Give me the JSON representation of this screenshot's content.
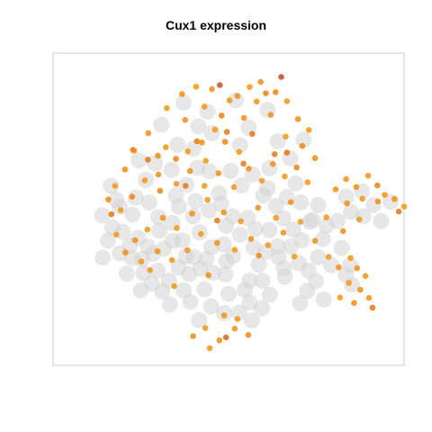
{
  "chart_data": {
    "type": "scatter",
    "title": "Cux1 expression",
    "xlabel": "",
    "ylabel": "",
    "legend": "none",
    "grid": false,
    "axes_visible": false,
    "xlim": [
      -40,
      40
    ],
    "ylim": [
      -40,
      40
    ],
    "colors": {
      "background_cells": "#d3d3d3",
      "low": "#f5b62c",
      "mid": "#ee8a1a",
      "high": "#c4473d",
      "panel_border": "#cccccc"
    },
    "series": [
      {
        "role": "non-expressing cells",
        "points": [
          [
            -26.5,
            -4.6
          ],
          [
            -24.8,
            0.6
          ],
          [
            -24.1,
            -5.8
          ],
          [
            -21.9,
            -1.4
          ],
          [
            -22.5,
            -9.3
          ],
          [
            -20.6,
            -7.3
          ],
          [
            -18.4,
            -9.6
          ],
          [
            -17.2,
            -11.4
          ],
          [
            -19.7,
            -12.8
          ],
          [
            -13.6,
            -18.3
          ],
          [
            -16.2,
            -15.7
          ],
          [
            -11.4,
            -14.9
          ],
          [
            -9.0,
            -16.6
          ],
          [
            -14.8,
            -10.1
          ],
          [
            -15.8,
            -5.5
          ],
          [
            -12.8,
            -3.5
          ],
          [
            -10.5,
            -8.0
          ],
          [
            -7.9,
            -12.2
          ],
          [
            -5.0,
            -12.7
          ],
          [
            -3.5,
            -16.3
          ],
          [
            -0.7,
            -16.7
          ],
          [
            -6.6,
            -5.9
          ],
          [
            -11.3,
            0.7
          ],
          [
            -12.0,
            3.5
          ],
          [
            -9.6,
            6.3
          ],
          [
            -7.5,
            2.1
          ],
          [
            -4.5,
            -0.3
          ],
          [
            -1.7,
            1.4
          ],
          [
            -0.6,
            -4.2
          ],
          [
            2.6,
            -6.5
          ],
          [
            4.4,
            -2.2
          ],
          [
            5.7,
            -9.8
          ],
          [
            9.3,
            -5.3
          ],
          [
            11.2,
            -9.5
          ],
          [
            12.4,
            -2.3
          ],
          [
            14.7,
            -5.2
          ],
          [
            16.7,
            -7.9
          ],
          [
            18.5,
            -3.2
          ],
          [
            10.8,
            0.8
          ],
          [
            7.9,
            3.5
          ],
          [
            13.3,
            3.1
          ],
          [
            16.5,
            1.7
          ],
          [
            19.1,
            -2.8
          ],
          [
            21.5,
            -7.6
          ],
          [
            20.4,
            -12.3
          ],
          [
            6.9,
            -14.2
          ],
          [
            12.6,
            -15.1
          ],
          [
            16.0,
            -13.8
          ],
          [
            -2.2,
            4.1
          ],
          [
            -4.4,
            9.7
          ],
          [
            0.5,
            9.8
          ],
          [
            3.0,
            6.1
          ],
          [
            5.5,
            8.9
          ],
          [
            9.3,
            10.5
          ],
          [
            -7.1,
            10.6
          ],
          [
            -13.0,
            10.1
          ],
          [
            -16.8,
            11.8
          ],
          [
            -18.9,
            7.5
          ],
          [
            -21.2,
            3.0
          ],
          [
            -25.6,
            2.4
          ],
          [
            -1.1,
            -9.0
          ],
          [
            1.0,
            -12.0
          ],
          [
            -18.1,
            1.7
          ],
          [
            -22.0,
            -12.5
          ],
          [
            2.6,
            16.4
          ],
          [
            4.6,
            20.9
          ],
          [
            -3.8,
            19.5
          ],
          [
            -8.0,
            15.5
          ],
          [
            11.2,
            17.4
          ],
          [
            14.0,
            13.1
          ],
          [
            17.1,
            17.8
          ],
          [
            8.9,
            25.4
          ],
          [
            1.6,
            27.9
          ],
          [
            -4.8,
            25.0
          ],
          [
            12.8,
            -17.3
          ],
          [
            4.8,
            -18.3
          ],
          [
            -4.0,
            -24.9
          ],
          [
            -1.0,
            -26.6
          ],
          [
            2.4,
            -26.5
          ],
          [
            4.8,
            -23.9
          ],
          [
            7.6,
            -25.4
          ],
          [
            9.4,
            -21.9
          ],
          [
            19.9,
            -18.4
          ],
          [
            17.9,
            -20.9
          ],
          [
            16.3,
            -24.1
          ],
          [
            26.7,
            -16.8
          ],
          [
            28.1,
            -19.4
          ],
          [
            27.7,
            -14.3
          ],
          [
            25.8,
            -9.9
          ],
          [
            23.4,
            -14.3
          ],
          [
            21.7,
            -23.1
          ],
          [
            26.8,
            3.2
          ],
          [
            24.8,
            -3.0
          ],
          [
            30.4,
            4.6
          ],
          [
            33.0,
            1.1
          ],
          [
            36.9,
            1.9
          ],
          [
            27.9,
            -0.7
          ],
          [
            30.7,
            -1.8
          ],
          [
            34.8,
            -3.0
          ],
          [
            -10.2,
            -20.8
          ],
          [
            -5.5,
            -20.5
          ],
          [
            -15.1,
            -21.1
          ],
          [
            -19.4,
            -16.3
          ],
          [
            -24.8,
            -11.3
          ],
          [
            -27.5,
            -8.0
          ],
          [
            -26.8,
            6.0
          ],
          [
            -28.8,
            -1.6
          ],
          [
            -20.5,
            12.5
          ],
          [
            -11.6,
            16.5
          ],
          [
            -6.9,
            21.2
          ],
          [
            -10.3,
            27.3
          ],
          [
            -15.3,
            21.6
          ],
          [
            3.7,
            -20.7
          ],
          [
            0.0,
            -21.7
          ],
          [
            7.7,
            -18.3
          ],
          [
            -16.0,
            -2.0
          ],
          [
            -8.1,
            -1.8
          ],
          [
            0.9,
            -1.8
          ],
          [
            6.1,
            -5.1
          ],
          [
            -3.9,
            -9.7
          ],
          [
            14.2,
            -9.5
          ],
          [
            11.4,
            -12.3
          ],
          [
            -12.7,
            -8.1
          ],
          [
            -9.7,
            -12.1
          ],
          [
            -6.4,
            -15.2
          ],
          [
            -0.5,
            -13.3
          ],
          [
            8.5,
            -10.9
          ],
          [
            18.2,
            -15.7
          ],
          [
            22.3,
            -4.2
          ],
          [
            20.4,
            1.1
          ],
          [
            15.3,
            6.6
          ],
          [
            8.9,
            5.4
          ],
          [
            -17.5,
            -19.0
          ],
          [
            -20.0,
            -20.8
          ],
          [
            -13.4,
            -24.4
          ],
          [
            -8.7,
            -23.7
          ],
          [
            -6.7,
            -28.4
          ],
          [
            5.3,
            -28.5
          ],
          [
            -23.2,
            -16.5
          ],
          [
            -28.7,
            -12.4
          ]
        ]
      },
      {
        "role": "expressing cells",
        "points": [
          [
            -16.1,
            13.7,
            0.4
          ],
          [
            -14.3,
            15.9,
            0.3
          ],
          [
            -12.0,
            12.9,
            0.5
          ],
          [
            -9.3,
            14.8,
            0.3
          ],
          [
            -6.1,
            17.1,
            0.4
          ],
          [
            -3.1,
            20.4,
            0.3
          ],
          [
            -0.8,
            17.3,
            0.5
          ],
          [
            2.4,
            14.7,
            0.3
          ],
          [
            -9.9,
            22.9,
            0.4
          ],
          [
            -5.5,
            26.3,
            0.3
          ],
          [
            -1.6,
            24.0,
            0.5
          ],
          [
            2.0,
            29.0,
            0.4
          ],
          [
            4.8,
            31.3,
            0.3
          ],
          [
            7.3,
            32.6,
            0.4
          ],
          [
            10.7,
            30.0,
            0.5
          ],
          [
            13.3,
            27.7,
            0.3
          ],
          [
            15.8,
            23.1,
            0.4
          ],
          [
            18.3,
            20.3,
            0.3
          ],
          [
            16.8,
            16.2,
            0.5
          ],
          [
            13.0,
            18.6,
            0.3
          ],
          [
            9.6,
            24.2,
            0.4
          ],
          [
            6.4,
            27.6,
            0.3
          ],
          [
            3.5,
            23.4,
            0.4
          ],
          [
            0.2,
            27.9,
            0.3
          ],
          [
            -3.8,
            30.8,
            0.4
          ],
          [
            -7.4,
            31.4,
            0.3
          ],
          [
            -10.6,
            29.5,
            0.4
          ],
          [
            -14.1,
            25.9,
            0.3
          ],
          [
            -18.3,
            19.5,
            0.4
          ],
          [
            -21.5,
            15.0,
            0.3
          ],
          [
            -23.6,
            10.2,
            0.4
          ],
          [
            -25.9,
            6.0,
            0.3
          ],
          [
            -27.4,
            2.5,
            0.4
          ],
          [
            -24.6,
            -0.2,
            0.3
          ],
          [
            -22.0,
            3.2,
            0.5
          ],
          [
            -19.1,
            7.4,
            0.3
          ],
          [
            -16.0,
            8.9,
            0.4
          ],
          [
            -11.9,
            6.5,
            0.3
          ],
          [
            -8.8,
            9.8,
            0.4
          ],
          [
            -5.5,
            6.0,
            0.3
          ],
          [
            -2.3,
            9.2,
            0.4
          ],
          [
            1.2,
            5.7,
            0.3
          ],
          [
            4.6,
            10.4,
            0.4
          ],
          [
            7.6,
            7.3,
            0.3
          ],
          [
            10.1,
            11.6,
            0.4
          ],
          [
            12.8,
            8.4,
            0.3
          ],
          [
            15.5,
            10.7,
            0.5
          ],
          [
            18.0,
            6.9,
            0.3
          ],
          [
            14.2,
            1.8,
            0.4
          ],
          [
            10.8,
            -2.2,
            0.3
          ],
          [
            6.7,
            0.4,
            0.4
          ],
          [
            2.8,
            -3.1,
            0.3
          ],
          [
            -1.1,
            -0.8,
            0.4
          ],
          [
            -4.8,
            2.4,
            0.3
          ],
          [
            -8.3,
            -1.1,
            0.4
          ],
          [
            -11.8,
            -4.8,
            0.3
          ],
          [
            -15.0,
            -2.2,
            0.4
          ],
          [
            -18.5,
            -5.2,
            0.3
          ],
          [
            -21.3,
            -7.9,
            0.4
          ],
          [
            -25.6,
            -6.5,
            0.3
          ],
          [
            -23.5,
            -11.1,
            0.4
          ],
          [
            -19.9,
            -13.4,
            0.3
          ],
          [
            -16.2,
            -10.8,
            0.4
          ],
          [
            -12.9,
            -13.0,
            0.3
          ],
          [
            -9.4,
            -10.5,
            0.4
          ],
          [
            -6.3,
            -6.3,
            0.3
          ],
          [
            -2.6,
            -8.6,
            0.4
          ],
          [
            1.4,
            -10.4,
            0.3
          ],
          [
            5.1,
            -7.6,
            0.4
          ],
          [
            9.0,
            -9.2,
            0.3
          ],
          [
            12.5,
            -6.0,
            0.4
          ],
          [
            16.4,
            -3.2,
            0.3
          ],
          [
            19.7,
            -8.1,
            0.4
          ],
          [
            22.8,
            -12.2,
            0.3
          ],
          [
            25.1,
            -14.9,
            0.4
          ],
          [
            27.8,
            -12.5,
            0.3
          ],
          [
            29.3,
            -15.1,
            0.4
          ],
          [
            31.2,
            -17.1,
            0.3
          ],
          [
            30.0,
            -20.6,
            0.4
          ],
          [
            27.4,
            -18.9,
            0.3
          ],
          [
            28.6,
            -24.0,
            0.4
          ],
          [
            32.0,
            -22.7,
            0.3
          ],
          [
            32.8,
            -25.2,
            0.6
          ],
          [
            25.4,
            -22.6,
            0.3
          ],
          [
            24.4,
            5.1,
            0.4
          ],
          [
            26.8,
            7.7,
            0.3
          ],
          [
            29.1,
            5.7,
            0.4
          ],
          [
            31.8,
            8.6,
            0.3
          ],
          [
            33.9,
            6.1,
            0.5
          ],
          [
            35.6,
            3.7,
            0.3
          ],
          [
            37.8,
            2.6,
            0.4
          ],
          [
            40.0,
            0.7,
            0.3
          ],
          [
            34.0,
            2.0,
            0.4
          ],
          [
            30.5,
            2.7,
            0.3
          ],
          [
            27.0,
            1.5,
            0.4
          ],
          [
            29.8,
            -2.6,
            0.3
          ],
          [
            26.1,
            -5.6,
            0.4
          ],
          [
            22.3,
            -2.1,
            0.3
          ],
          [
            -8.1,
            -32.5,
            0.4
          ],
          [
            -5.3,
            -30.4,
            0.3
          ],
          [
            -2.1,
            -33.6,
            0.4
          ],
          [
            1.4,
            -30.6,
            0.3
          ],
          [
            4.5,
            -32.2,
            0.4
          ],
          [
            2.0,
            -28.1,
            0.3
          ],
          [
            -1.0,
            -27.2,
            0.4
          ],
          [
            -4.3,
            -35.6,
            0.3
          ],
          [
            -0.6,
            -32.8,
            0.7
          ],
          [
            -2.6,
            -2.9,
            0.6
          ],
          [
            5.4,
            19.3,
            0.6
          ],
          [
            -0.4,
            19.8,
            0.6
          ],
          [
            -7.2,
            17.4,
            0.6
          ],
          [
            10.5,
            14.1,
            0.6
          ],
          [
            13.3,
            14.5,
            0.6
          ],
          [
            -9.8,
            6.0,
            0.6
          ],
          [
            -26.7,
            -1.3,
            0.6
          ],
          [
            -18.4,
            12.7,
            0.6
          ],
          [
            38.8,
            -0.6,
            0.6
          ],
          [
            3.4,
            11.7,
            0.6
          ],
          [
            8.5,
            29.7,
            0.5
          ],
          [
            12.0,
            33.9,
            0.9
          ],
          [
            -2.0,
            31.8,
            0.85
          ],
          [
            -21.8,
            15.2,
            0.5
          ],
          [
            -15.6,
            4.7,
            0.5
          ],
          [
            6.9,
            -11.9,
            0.5
          ],
          [
            15.0,
            -12.1,
            0.3
          ],
          [
            -12.4,
            -19.7,
            0.3
          ],
          [
            -4.6,
            -16.9,
            0.4
          ],
          [
            19.7,
            13.1,
            0.4
          ],
          [
            -17.9,
            -15.6,
            0.3
          ],
          [
            -5.2,
            12.4,
            0.3
          ]
        ]
      }
    ]
  }
}
